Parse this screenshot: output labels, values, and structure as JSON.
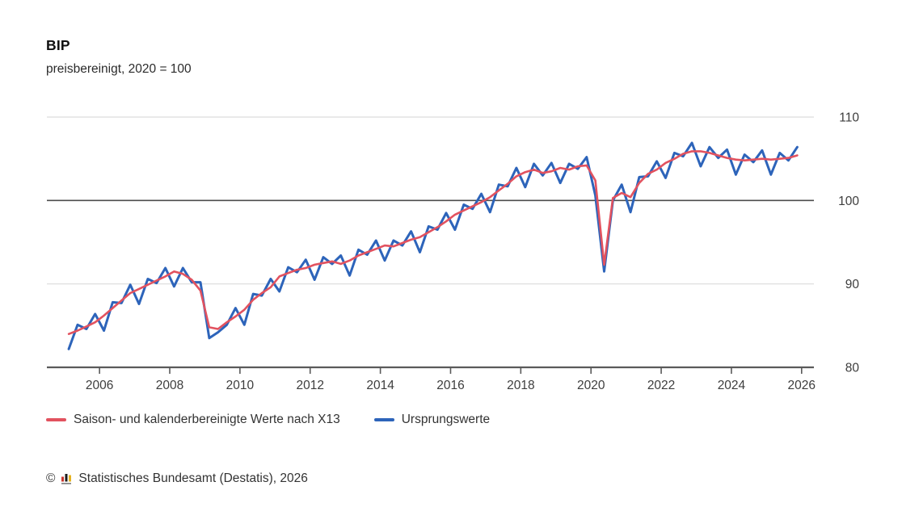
{
  "header": {
    "title": "BIP",
    "subtitle": "preisbereinigt, 2020 = 100"
  },
  "chart_data": {
    "type": "line",
    "title": "BIP",
    "subtitle": "preisbereinigt, 2020 = 100",
    "x_unit": "year, quarterly data points",
    "x_start": 2005.125,
    "x_step": 0.25,
    "xlim": [
      2004.5,
      2026.35
    ],
    "ylim": [
      80,
      110
    ],
    "x_ticks": [
      2006,
      2008,
      2010,
      2012,
      2014,
      2016,
      2018,
      2020,
      2022,
      2024,
      2026
    ],
    "y_ticks": [
      80,
      90,
      100,
      110
    ],
    "reference_line_y": 100,
    "grid": "horizontal",
    "legend_position": "bottom",
    "series": [
      {
        "name": "Saison- und kalenderbereinigte Werte nach X13",
        "color": "#e2525f",
        "values": [
          84.0,
          84.4,
          84.9,
          85.4,
          86.2,
          87.1,
          88.0,
          88.9,
          89.4,
          89.9,
          90.4,
          90.9,
          91.5,
          91.2,
          90.5,
          89.2,
          84.8,
          84.6,
          85.4,
          86.1,
          86.9,
          88.1,
          88.9,
          89.6,
          90.9,
          91.3,
          91.7,
          91.9,
          92.3,
          92.5,
          92.7,
          92.4,
          92.8,
          93.4,
          93.8,
          94.2,
          94.6,
          94.5,
          94.9,
          95.3,
          95.6,
          96.2,
          96.8,
          97.5,
          98.3,
          98.8,
          99.3,
          99.8,
          100.4,
          101.2,
          102.0,
          102.9,
          103.4,
          103.7,
          103.3,
          103.5,
          103.9,
          103.7,
          104.1,
          104.2,
          102.4,
          92.3,
          100.3,
          100.9,
          100.4,
          102.1,
          103.2,
          103.7,
          104.5,
          105.0,
          105.6,
          105.9,
          105.9,
          105.7,
          105.4,
          105.1,
          104.9,
          104.8,
          104.9,
          105.0,
          104.9,
          105.0,
          105.1,
          105.4
        ]
      },
      {
        "name": "Ursprungswerte",
        "color": "#2d64ba",
        "values": [
          82.2,
          85.1,
          84.6,
          86.4,
          84.4,
          87.8,
          87.7,
          89.9,
          87.6,
          90.6,
          90.1,
          91.9,
          89.7,
          91.9,
          90.2,
          90.2,
          83.5,
          84.2,
          85.1,
          87.1,
          85.1,
          88.8,
          88.6,
          90.6,
          89.1,
          92.0,
          91.4,
          92.9,
          90.5,
          93.2,
          92.4,
          93.4,
          91.0,
          94.1,
          93.5,
          95.2,
          92.8,
          95.2,
          94.6,
          96.3,
          93.8,
          96.9,
          96.5,
          98.5,
          96.5,
          99.5,
          99.0,
          100.8,
          98.6,
          101.9,
          101.7,
          103.9,
          101.6,
          104.4,
          103.0,
          104.5,
          102.1,
          104.4,
          103.8,
          105.2,
          100.6,
          91.5,
          100.0,
          101.9,
          98.6,
          102.8,
          102.9,
          104.7,
          102.7,
          105.7,
          105.3,
          106.9,
          104.1,
          106.4,
          105.1,
          106.1,
          103.1,
          105.5,
          104.6,
          106.0,
          103.1,
          105.7,
          104.8,
          106.4
        ]
      }
    ]
  },
  "footer": {
    "copyright": "©",
    "source": "Statistisches Bundesamt (Destatis), 2026",
    "logo_icon": "destatis-bar-chart-icon",
    "logo_colors": {
      "bar1": "#c9362e",
      "bar2": "#1c1c1c",
      "bar3": "#e6b322",
      "baseline": "#8a8a8a"
    }
  }
}
